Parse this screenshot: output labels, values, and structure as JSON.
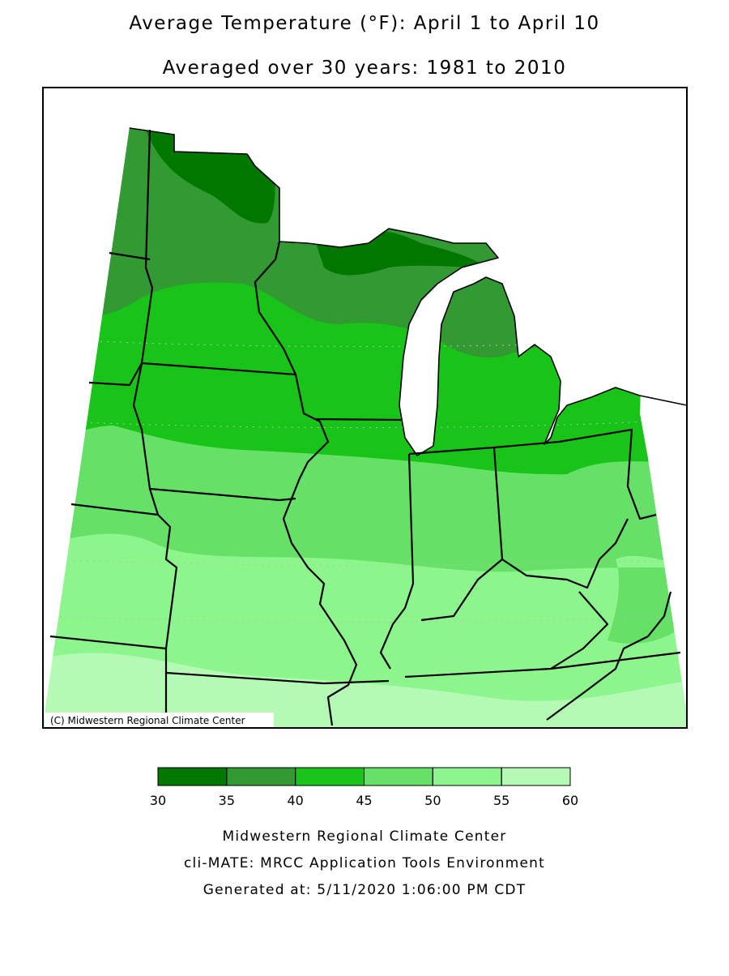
{
  "title": "Average Temperature (°F): April 1 to April 10",
  "subtitle": "Averaged over 30 years: 1981 to 2010",
  "copyright": "(C) Midwestern Regional Climate Center",
  "legend": {
    "bounds": [
      30,
      35,
      40,
      45,
      50,
      55,
      60
    ],
    "colors": [
      "#007800",
      "#339933",
      "#18c418",
      "#66e066",
      "#8cf58c",
      "#b4fab4"
    ]
  },
  "footer": [
    "Midwestern Regional Climate Center",
    "cli-MATE: MRCC Application Tools Environment",
    "Generated at: 5/11/2020 1:06:00 PM CDT"
  ]
}
